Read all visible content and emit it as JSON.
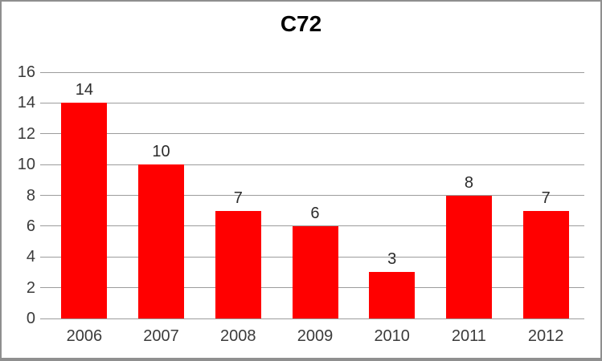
{
  "chart_data": {
    "type": "bar",
    "title": "C72",
    "categories": [
      "2006",
      "2007",
      "2008",
      "2009",
      "2010",
      "2011",
      "2012"
    ],
    "values": [
      14,
      10,
      7,
      6,
      3,
      8,
      7
    ],
    "xlabel": "",
    "ylabel": "",
    "ylim": [
      0,
      16
    ],
    "yticks": [
      0,
      2,
      4,
      6,
      8,
      10,
      12,
      14,
      16
    ],
    "grid": true,
    "legend": "none",
    "data_labels": true,
    "colors": {
      "bar": "#ff0000",
      "gridline": "#9c9c9c",
      "axis_text": "#3b3b3b",
      "title_text": "#000000",
      "frame_border": "#8f8f8f",
      "background": "#ffffff"
    }
  }
}
